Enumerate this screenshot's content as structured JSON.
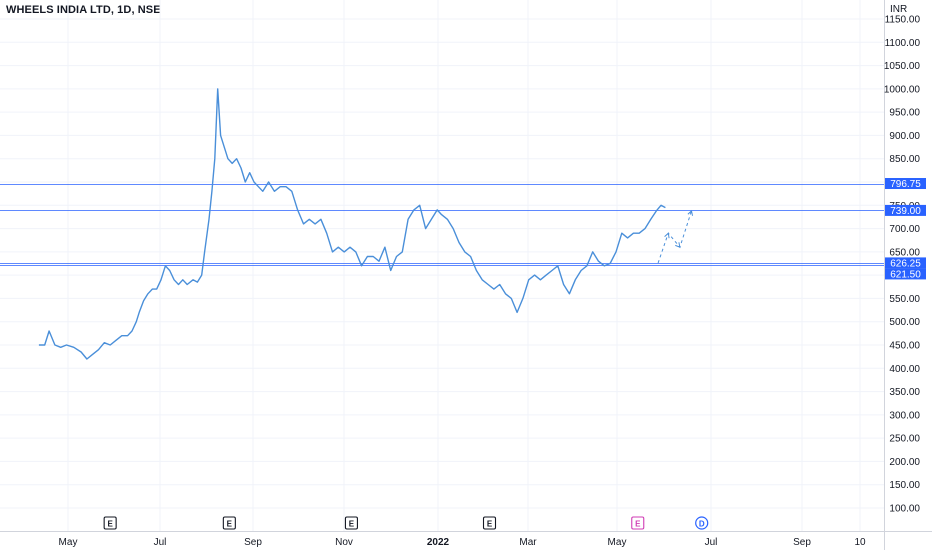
{
  "chart_data": {
    "type": "line",
    "title": "WHEELS INDIA LTD, 1D, NSE",
    "currency": "INR",
    "x_tick_labels": [
      "May",
      "Jul",
      "Sep",
      "Nov",
      "2022",
      "Mar",
      "May",
      "Jul",
      "Sep",
      "10"
    ],
    "y_tick_labels": [
      "100.00",
      "150.00",
      "200.00",
      "250.00",
      "300.00",
      "350.00",
      "400.00",
      "450.00",
      "500.00",
      "550.00",
      "600.00",
      "650.00",
      "700.00",
      "750.00",
      "800.00",
      "850.00",
      "900.00",
      "950.00",
      "1000.00",
      "1050.00",
      "1100.00",
      "1150.00"
    ],
    "y_range": [
      100,
      1150
    ],
    "grid": true,
    "series": [
      {
        "color": "#4a8fd9",
        "x": [
          "2021-04-01",
          "2021-04-05",
          "2021-04-08",
          "2021-04-12",
          "2021-04-16",
          "2021-04-20",
          "2021-04-25",
          "2021-04-30",
          "2021-05-04",
          "2021-05-08",
          "2021-05-12",
          "2021-05-16",
          "2021-05-20",
          "2021-05-24",
          "2021-05-28",
          "2021-06-01",
          "2021-06-04",
          "2021-06-07",
          "2021-06-09",
          "2021-06-12",
          "2021-06-15",
          "2021-06-18",
          "2021-06-21",
          "2021-06-24",
          "2021-06-27",
          "2021-06-30",
          "2021-07-03",
          "2021-07-06",
          "2021-07-09",
          "2021-07-12",
          "2021-07-16",
          "2021-07-19",
          "2021-07-22",
          "2021-07-24",
          "2021-07-27",
          "2021-07-29",
          "2021-07-31",
          "2021-08-02",
          "2021-08-04",
          "2021-08-06",
          "2021-08-09",
          "2021-08-12",
          "2021-08-15",
          "2021-08-18",
          "2021-08-21",
          "2021-08-24",
          "2021-08-27",
          "2021-08-30",
          "2021-09-02",
          "2021-09-06",
          "2021-09-10",
          "2021-09-14",
          "2021-09-18",
          "2021-09-22",
          "2021-09-26",
          "2021-09-30",
          "2021-10-04",
          "2021-10-08",
          "2021-10-12",
          "2021-10-16",
          "2021-10-20",
          "2021-10-24",
          "2021-10-28",
          "2021-11-01",
          "2021-11-05",
          "2021-11-09",
          "2021-11-13",
          "2021-11-17",
          "2021-11-21",
          "2021-11-25",
          "2021-11-29",
          "2021-12-03",
          "2021-12-07",
          "2021-12-11",
          "2021-12-15",
          "2021-12-19",
          "2021-12-23",
          "2021-12-27",
          "2021-12-31",
          "2022-01-03",
          "2022-01-07",
          "2022-01-11",
          "2022-01-15",
          "2022-01-19",
          "2022-01-23",
          "2022-01-27",
          "2022-01-31",
          "2022-02-04",
          "2022-02-08",
          "2022-02-12",
          "2022-02-16",
          "2022-02-20",
          "2022-02-24",
          "2022-02-28",
          "2022-03-04",
          "2022-03-08",
          "2022-03-12",
          "2022-03-16",
          "2022-03-20",
          "2022-03-24",
          "2022-03-28",
          "2022-04-01",
          "2022-04-05",
          "2022-04-09",
          "2022-04-13",
          "2022-04-17",
          "2022-04-21",
          "2022-04-25",
          "2022-04-29",
          "2022-05-03",
          "2022-05-07",
          "2022-05-11",
          "2022-05-15",
          "2022-05-19",
          "2022-05-23",
          "2022-05-27",
          "2022-05-31",
          "2022-06-03",
          "2022-06-06"
        ],
        "y": [
          450,
          450,
          480,
          450,
          445,
          450,
          445,
          435,
          420,
          430,
          440,
          455,
          450,
          460,
          470,
          470,
          480,
          500,
          520,
          545,
          560,
          570,
          570,
          590,
          620,
          610,
          590,
          580,
          590,
          580,
          590,
          585,
          600,
          650,
          720,
          780,
          850,
          1000,
          900,
          880,
          850,
          840,
          850,
          830,
          800,
          820,
          800,
          790,
          780,
          800,
          780,
          790,
          790,
          780,
          740,
          710,
          720,
          710,
          720,
          690,
          650,
          660,
          650,
          660,
          650,
          620,
          640,
          640,
          630,
          660,
          610,
          640,
          650,
          720,
          740,
          750,
          700,
          720,
          740,
          730,
          720,
          700,
          670,
          650,
          640,
          610,
          590,
          580,
          570,
          580,
          560,
          550,
          520,
          550,
          590,
          600,
          590,
          600,
          610,
          620,
          580,
          560,
          590,
          610,
          620,
          650,
          630,
          620,
          625,
          650,
          690,
          680,
          690,
          690,
          700,
          720,
          739,
          750,
          745
        ]
      }
    ],
    "horizontal_levels": [
      {
        "value": 796.75,
        "label": "796.75"
      },
      {
        "value": 739.0,
        "label": "739.00"
      },
      {
        "value": 626.25,
        "label": "626.25"
      },
      {
        "value": 621.5,
        "label": "621.50"
      }
    ],
    "projection": {
      "x": [
        "2022-06-01",
        "2022-06-08",
        "2022-06-16",
        "2022-06-24"
      ],
      "y": [
        626,
        690,
        660,
        738
      ]
    },
    "event_markers": [
      {
        "label": "E",
        "x": "2021-05-20",
        "color": "#131722"
      },
      {
        "label": "E",
        "x": "2021-08-10",
        "color": "#131722"
      },
      {
        "label": "E",
        "x": "2021-11-02",
        "color": "#131722"
      },
      {
        "label": "E",
        "x": "2022-02-05",
        "color": "#131722"
      },
      {
        "label": "E",
        "x": "2022-05-18",
        "color": "#d03db5"
      },
      {
        "label": "D",
        "x": "2022-07-01",
        "color": "#2962ff"
      }
    ]
  }
}
